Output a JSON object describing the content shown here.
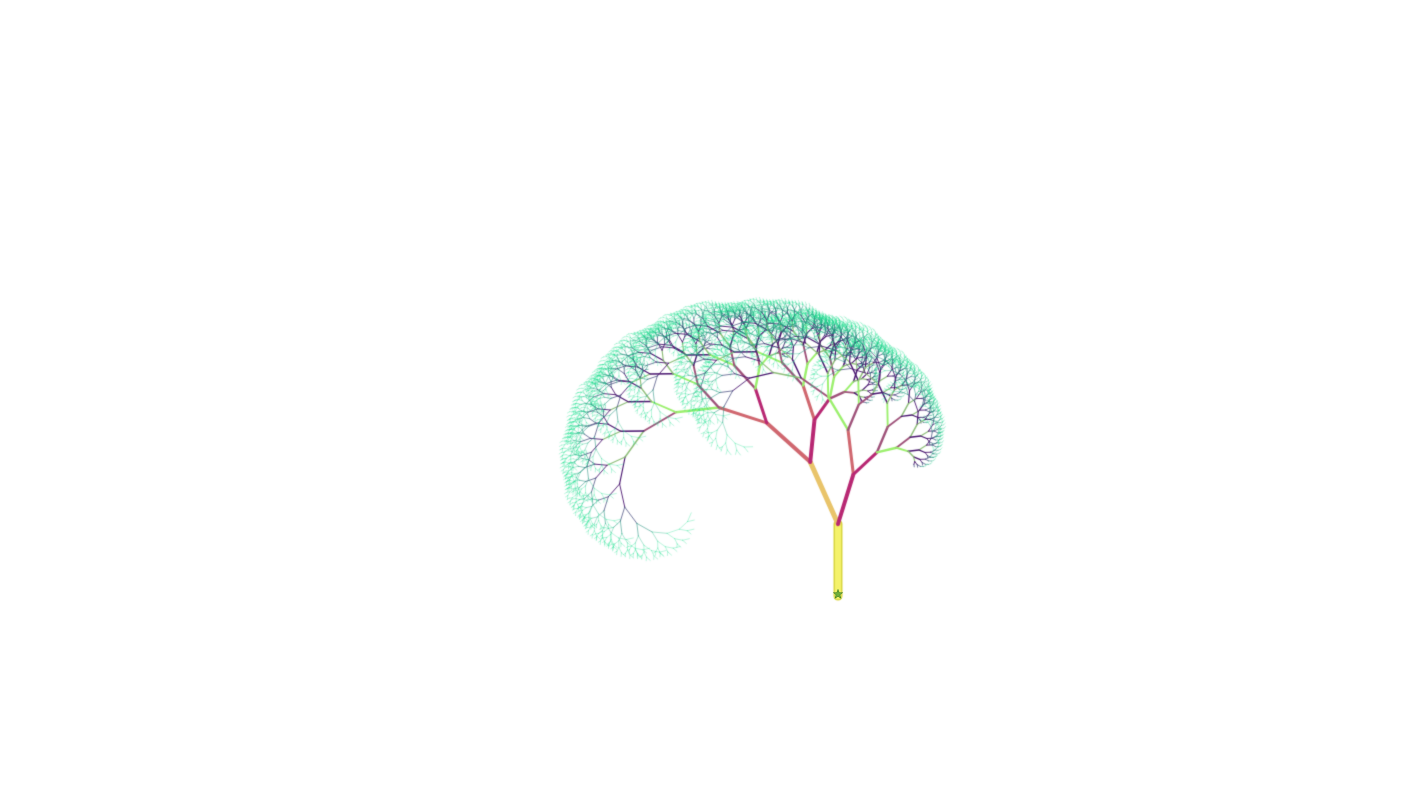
{
  "scene": {
    "background": "#ffffff",
    "fractal": "pythagoras-tree-curled",
    "recursion_depth": 14
  },
  "palette": {
    "trunk": "#f4f26a",
    "trunk_edge": "#d9d640",
    "branch_warm": "#e9c46a",
    "branch_orange": "#dd9a6e",
    "branch_pink": "#c2336f",
    "branch_magenta": "#a8187a",
    "branch_lime": "#9cf06e",
    "branch_sage": "#8fbf7a",
    "branch_purple": "#4a1670",
    "branch_teal": "#2a6a7a",
    "leaf_green": "#16e08a"
  },
  "icons": {
    "root_marker": "star-icon"
  }
}
